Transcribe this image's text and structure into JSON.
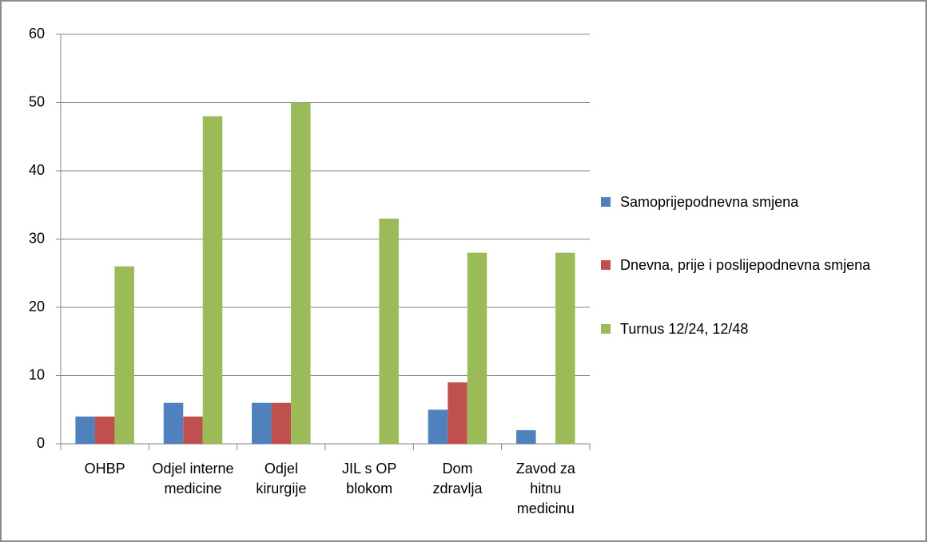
{
  "chart_data": {
    "type": "bar",
    "categories": [
      "OHBP",
      "Odjel interne medicine",
      "Odjel kirurgije",
      "JIL s OP blokom",
      "Dom zdravlja",
      "Zavod za hitnu medicinu"
    ],
    "series": [
      {
        "name": "Samoprijepodnevna smjena",
        "color": "#4f81bd",
        "values": [
          4,
          6,
          6,
          0,
          5,
          2
        ]
      },
      {
        "name": "Dnevna, prije i poslijepodnevna smjena",
        "color": "#c0504d",
        "values": [
          4,
          4,
          6,
          0,
          9,
          0
        ]
      },
      {
        "name": "Turnus 12/24, 12/48",
        "color": "#9bbb59",
        "values": [
          26,
          48,
          50,
          33,
          28,
          28
        ]
      }
    ],
    "ylim": [
      0,
      60
    ],
    "yticks": [
      0,
      10,
      20,
      30,
      40,
      50,
      60
    ],
    "grid": true,
    "legend": "right"
  }
}
